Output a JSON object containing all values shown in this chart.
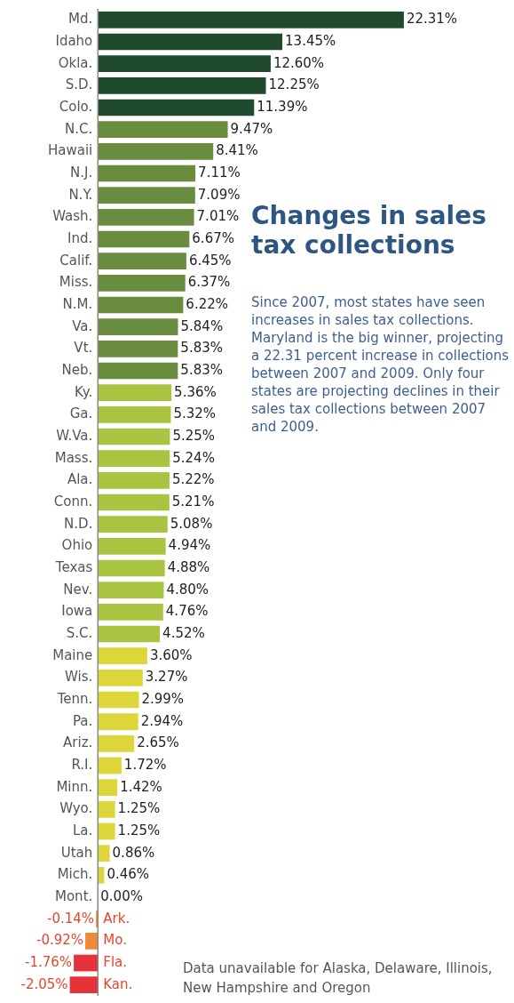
{
  "chart_data": {
    "type": "bar",
    "orientation": "horizontal",
    "title": "Changes in sales tax collections",
    "subtitle": "Since 2007, most states have seen increases in sales tax collections. Maryland is the big winner, projecting a 22.31 percent increase in collections between 2007 and 2009. Only four states are projecting declines in their sales tax collections between 2007 and 2009.",
    "annotations": [
      "Data unavailable for Alaska, Delaware, Illinois, New Hampshire and Oregon"
    ],
    "categories": [
      "Md.",
      "Idaho",
      "Okla.",
      "S.D.",
      "Colo.",
      "N.C.",
      "Hawaii",
      "N.J.",
      "N.Y.",
      "Wash.",
      "Ind.",
      "Calif.",
      "Miss.",
      "N.M.",
      "Va.",
      "Vt.",
      "Neb.",
      "Ky.",
      "Ga.",
      "W.Va.",
      "Mass.",
      "Ala.",
      "Conn.",
      "N.D.",
      "Ohio",
      "Texas",
      "Nev.",
      "Iowa",
      "S.C.",
      "Maine",
      "Wis.",
      "Tenn.",
      "Pa.",
      "Ariz.",
      "R.I.",
      "Minn.",
      "Wyo.",
      "La.",
      "Utah",
      "Mich.",
      "Mont.",
      "Ark.",
      "Mo.",
      "Fla.",
      "Kan."
    ],
    "values": [
      22.31,
      13.45,
      12.6,
      12.25,
      11.39,
      9.47,
      8.41,
      7.11,
      7.09,
      7.01,
      6.67,
      6.45,
      6.37,
      6.22,
      5.84,
      5.83,
      5.83,
      5.36,
      5.32,
      5.25,
      5.24,
      5.22,
      5.21,
      5.08,
      4.94,
      4.88,
      4.8,
      4.76,
      4.52,
      3.6,
      3.27,
      2.99,
      2.94,
      2.65,
      1.72,
      1.42,
      1.25,
      1.25,
      0.86,
      0.46,
      0.0,
      -0.14,
      -0.92,
      -1.76,
      -2.05
    ],
    "value_labels": [
      "22.31%",
      "13.45%",
      "12.60%",
      "12.25%",
      "11.39%",
      "9.47%",
      "8.41%",
      "7.11%",
      "7.09%",
      "7.01%",
      "6.67%",
      "6.45%",
      "6.37%",
      "6.22%",
      "5.84%",
      "5.83%",
      "5.83%",
      "5.36%",
      "5.32%",
      "5.25%",
      "5.24%",
      "5.22%",
      "5.21%",
      "5.08%",
      "4.94%",
      "4.88%",
      "4.80%",
      "4.76%",
      "4.52%",
      "3.60%",
      "3.27%",
      "2.99%",
      "2.94%",
      "2.65%",
      "1.72%",
      "1.42%",
      "1.25%",
      "1.25%",
      "0.86%",
      "0.46%",
      "0.00%",
      "-0.14%",
      "-0.92%",
      "-1.76%",
      "-2.05%"
    ],
    "colors": [
      "#1f4a2e",
      "#1f4a2e",
      "#1f4a2e",
      "#1f4a2e",
      "#1f4a2e",
      "#6a8c3e",
      "#6a8c3e",
      "#6a8c3e",
      "#6a8c3e",
      "#6a8c3e",
      "#6a8c3e",
      "#6a8c3e",
      "#6a8c3e",
      "#6a8c3e",
      "#6a8c3e",
      "#6a8c3e",
      "#6a8c3e",
      "#a9c440",
      "#a9c440",
      "#a9c440",
      "#a9c440",
      "#a9c440",
      "#a9c440",
      "#a9c440",
      "#a9c440",
      "#a9c440",
      "#a9c440",
      "#a9c440",
      "#a9c440",
      "#dcd63a",
      "#dcd63a",
      "#dcd63a",
      "#dcd63a",
      "#dcd63a",
      "#dcd63a",
      "#dcd63a",
      "#dcd63a",
      "#dcd63a",
      "#dcd63a",
      "#dcd63a",
      "#dcd63a",
      "#f0883a",
      "#f0883a",
      "#e8323a",
      "#e8323a"
    ],
    "legend": false
  }
}
